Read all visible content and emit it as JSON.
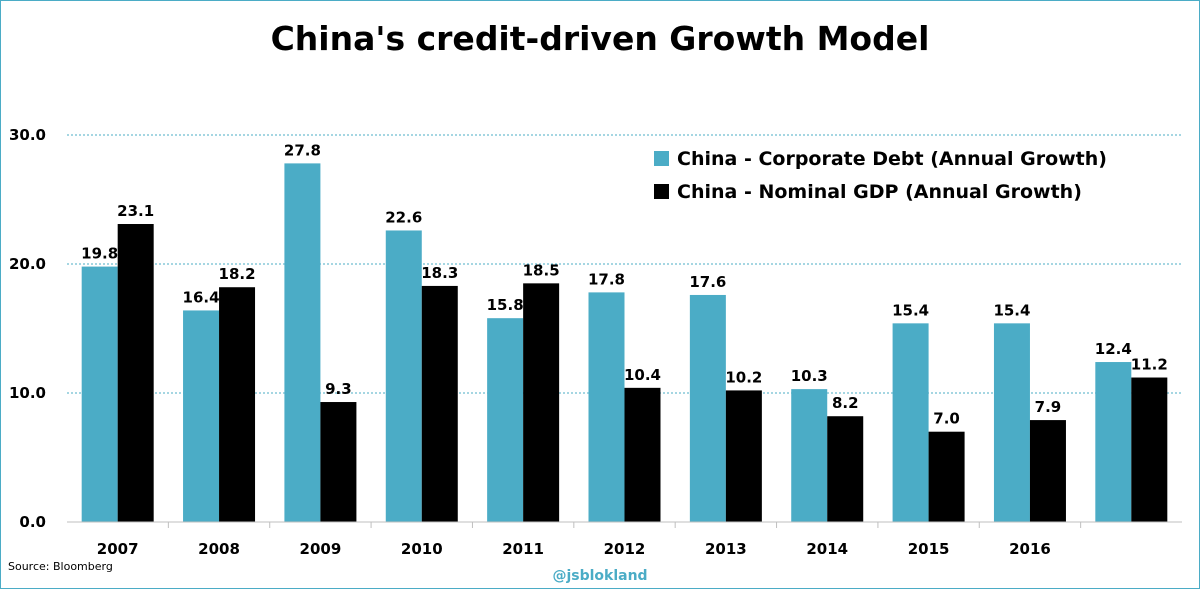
{
  "chart_data": {
    "type": "bar",
    "title": "China's credit-driven Growth Model",
    "categories": [
      "2007",
      "2008",
      "2009",
      "2010",
      "2011",
      "2012",
      "2013",
      "2014",
      "2015",
      "2016",
      ""
    ],
    "series": [
      {
        "name": "China - Corporate Debt (Annual Growth)",
        "color": "#4bacc6",
        "values": [
          19.8,
          16.4,
          27.8,
          22.6,
          15.8,
          17.8,
          17.6,
          10.3,
          15.4,
          15.4,
          12.4
        ]
      },
      {
        "name": "China - Nominal GDP (Annual Growth)",
        "color": "#000000",
        "values": [
          23.1,
          18.2,
          9.3,
          18.3,
          18.5,
          10.4,
          10.2,
          8.2,
          7.0,
          7.9,
          11.2
        ]
      }
    ],
    "ylim": [
      0,
      30
    ],
    "yticks": [
      0,
      10,
      20,
      30
    ],
    "ytick_labels": [
      "0.0",
      "10.0",
      "20.0",
      "30.0"
    ],
    "grid_color": "#4bacc6",
    "legend_position": "top-right",
    "xlabel": "",
    "ylabel": ""
  },
  "footer": {
    "source": "Source: Bloomberg",
    "watermark": "@jsblokland"
  }
}
